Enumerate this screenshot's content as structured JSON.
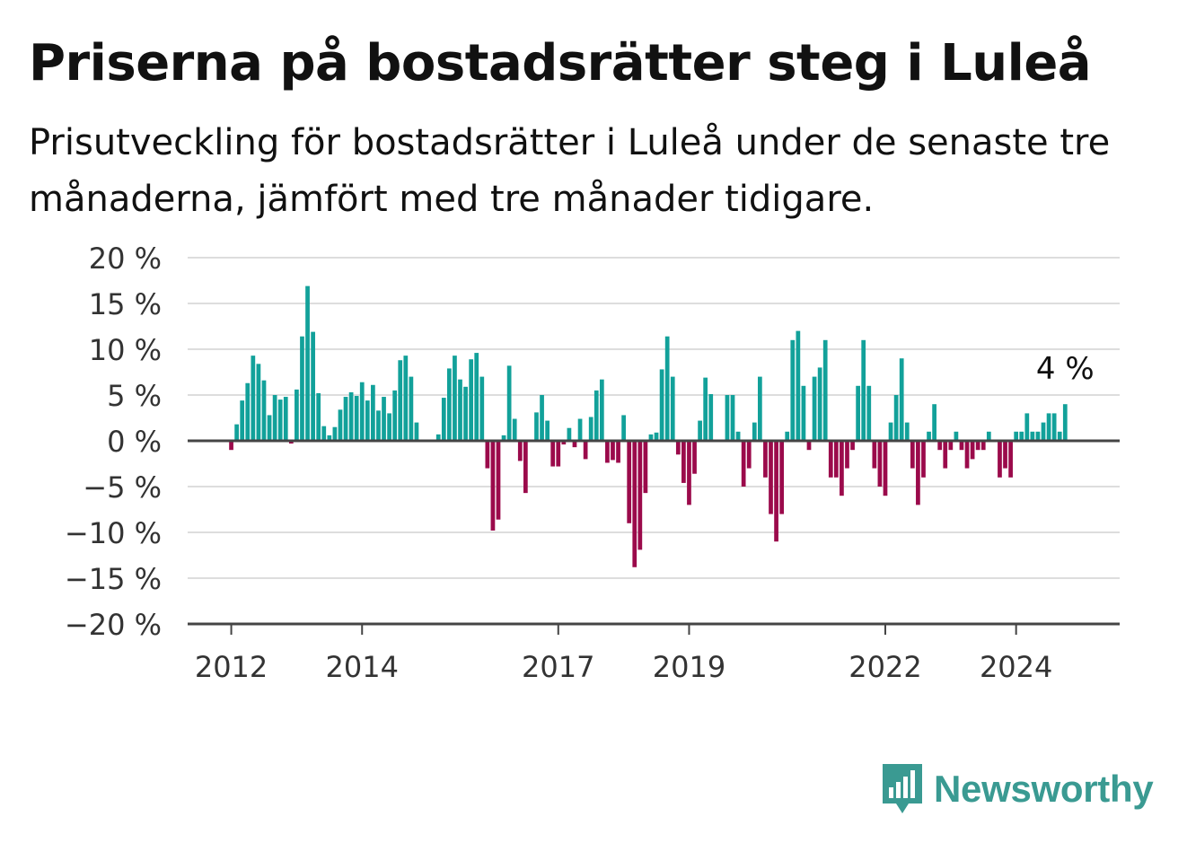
{
  "header": {
    "title": "Priserna på bostadsrätter steg i Luleå",
    "subtitle": "Prisutveckling för bostadsrätter i Luleå under de senaste tre månaderna, jämfört med tre månader tidigare."
  },
  "brand": {
    "name": "Newsworthy",
    "icon": "bar-chart-speech-bubble-icon",
    "color": "#3a9a92"
  },
  "chart_data": {
    "type": "bar",
    "title": "Priserna på bostadsrätter steg i Luleå",
    "subtitle": "Prisutveckling för bostadsrätter i Luleå under de senaste tre månaderna, jämfört med tre månader tidigare.",
    "ylim": [
      -20,
      20
    ],
    "y_ticks": [
      20,
      15,
      10,
      5,
      0,
      -5,
      -10,
      -15,
      -20
    ],
    "y_tick_labels": [
      "20 %",
      "15 %",
      "10 %",
      "5 %",
      "0 %",
      "−5 %",
      "−10 %",
      "−15 %",
      "−20 %"
    ],
    "x_ticks": [
      "2012-01",
      "2014-01",
      "2017-01",
      "2019-01",
      "2022-01",
      "2024-01"
    ],
    "x_tick_labels": [
      "2012",
      "2014",
      "2017",
      "2019",
      "2022",
      "2024"
    ],
    "x_range": [
      "2011-05",
      "2025-08"
    ],
    "grid": true,
    "colors": {
      "positive": "#12a19a",
      "negative": "#9b0a4b",
      "grid": "#dddddd",
      "axis": "#444444"
    },
    "annotation": {
      "text": "4 %",
      "x": "2024-10"
    },
    "series": [
      {
        "x_start": "2012-01",
        "values": [
          -1,
          1.8,
          4.4,
          6.3,
          9.3,
          8.4,
          6.6,
          2.8,
          5,
          4.5,
          4.8,
          -0.3,
          5.6,
          11.4,
          16.9,
          11.9,
          5.2,
          1.6,
          0.6,
          1.5,
          3.4,
          4.8,
          5.3,
          4.9,
          6.4,
          4.4,
          6.1,
          3.3,
          4.8,
          3,
          5.5,
          8.8,
          9.3,
          7,
          2,
          0,
          0,
          0,
          0.7,
          4.7,
          7.9,
          9.3,
          6.7,
          5.9,
          8.9,
          9.6,
          7,
          -3,
          -9.8,
          -8.6,
          0.6,
          8.2,
          2.4,
          -2.2,
          -5.7,
          0,
          3.1,
          5,
          2.2,
          -2.8,
          -2.8,
          -0.4,
          1.4,
          -0.7,
          2.4,
          -2,
          2.6,
          5.5,
          6.7,
          -2.4,
          -2.1,
          -2.4,
          2.8,
          -9,
          -13.8,
          -11.9,
          -5.7,
          0.7,
          0.9,
          7.8,
          11.4,
          7,
          -1.5,
          -4.6,
          -7,
          -3.6,
          2.2,
          6.9,
          5.1,
          0,
          0,
          5,
          5,
          1,
          -5,
          -3,
          2,
          7,
          -4,
          -8,
          -11,
          -8,
          1,
          11,
          12,
          6,
          -1,
          7,
          8,
          11,
          -4,
          -4,
          -6,
          -3,
          -1,
          6,
          11,
          6,
          -3,
          -5,
          -6,
          2,
          5,
          9,
          2,
          -3,
          -7,
          -4,
          1,
          4,
          -1,
          -3,
          -1,
          1,
          -1,
          -3,
          -2,
          -1,
          -1,
          1,
          0,
          -4,
          -3,
          -4,
          1,
          1,
          3,
          1,
          1,
          2,
          3,
          3,
          1,
          4
        ]
      }
    ]
  }
}
